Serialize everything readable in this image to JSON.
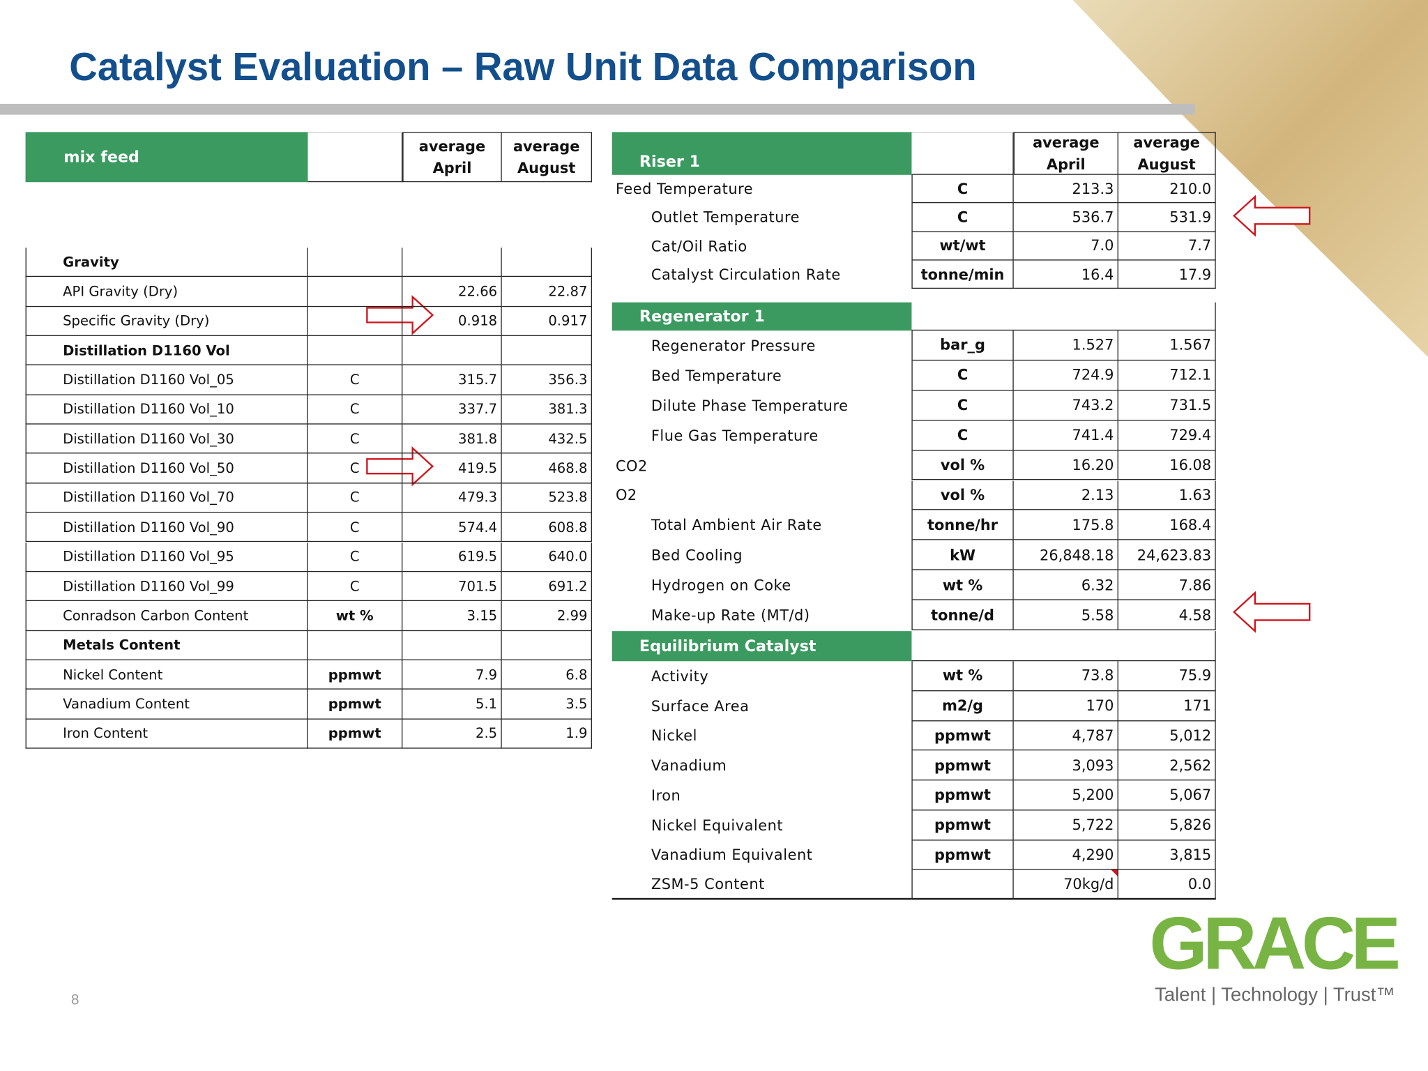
{
  "title": "Catalyst Evaluation – Raw Unit Data Comparison",
  "left_table": {
    "header": {
      "label": "mix feed",
      "columns": [
        [
          "average",
          "April"
        ],
        [
          "average",
          "August"
        ]
      ]
    },
    "rows": [
      {
        "section": "Gravity"
      },
      {
        "label": "API Gravity (Dry)",
        "april": "22.66",
        "august": "22.87"
      },
      {
        "label": "Specific Gravity (Dry)",
        "april": "0.918",
        "august": "0.917"
      },
      {
        "section": "Distillation D1160 Vol"
      },
      {
        "label": "Distillation D1160 Vol_05",
        "unit": "C",
        "april": "315.7",
        "august": "356.3"
      },
      {
        "label": "Distillation D1160 Vol_10",
        "unit": "C",
        "april": "337.7",
        "august": "381.3"
      },
      {
        "label": "Distillation D1160 Vol_30",
        "unit": "C",
        "april": "381.8",
        "august": "432.5"
      },
      {
        "label": "Distillation D1160 Vol_50",
        "unit": "C",
        "april": "419.5",
        "august": "468.8"
      },
      {
        "label": "Distillation D1160 Vol_70",
        "unit": "C",
        "april": "479.3",
        "august": "523.8"
      },
      {
        "label": "Distillation D1160 Vol_90",
        "unit": "C",
        "april": "574.4",
        "august": "608.8"
      },
      {
        "label": "Distillation D1160 Vol_95",
        "unit": "C",
        "april": "619.5",
        "august": "640.0"
      },
      {
        "label": "Distillation D1160 Vol_99",
        "unit": "C",
        "april": "701.5",
        "august": "691.2"
      },
      {
        "label": "Conradson Carbon Content",
        "unit": "wt %",
        "april": "3.15",
        "august": "2.99"
      },
      {
        "section": "Metals Content"
      },
      {
        "label": "Nickel Content",
        "unit": "ppmwt",
        "april": "7.9",
        "august": "6.8"
      },
      {
        "label": "Vanadium Content",
        "unit": "ppmwt",
        "april": "5.1",
        "august": "3.5"
      },
      {
        "label": "Iron Content",
        "unit": "ppmwt",
        "april": "2.5",
        "august": "1.9"
      }
    ]
  },
  "right_table": {
    "columns": [
      [
        "average",
        "April"
      ],
      [
        "average",
        "August"
      ]
    ],
    "sections": [
      {
        "title": "Riser 1",
        "rows": [
          {
            "label": "Feed Temperature",
            "unit": "C",
            "april": "213.3",
            "august": "210.0"
          },
          {
            "label": "Outlet Temperature",
            "unit": "C",
            "april": "536.7",
            "august": "531.9"
          },
          {
            "label": "Cat/Oil Ratio",
            "unit": "wt/wt",
            "april": "7.0",
            "august": "7.7"
          },
          {
            "label": "Catalyst Circulation Rate",
            "unit": "tonne/min",
            "april": "16.4",
            "august": "17.9"
          }
        ]
      },
      {
        "title": "Regenerator 1",
        "rows": [
          {
            "label": "Regenerator Pressure",
            "unit": "bar_g",
            "april": "1.527",
            "august": "1.567"
          },
          {
            "label": "Bed Temperature",
            "unit": "C",
            "april": "724.9",
            "august": "712.1"
          },
          {
            "label": "Dilute Phase Temperature",
            "unit": "C",
            "april": "743.2",
            "august": "731.5"
          },
          {
            "label": "Flue Gas Temperature",
            "unit": "C",
            "april": "741.4",
            "august": "729.4"
          },
          {
            "label": "CO2",
            "unit": "vol %",
            "april": "16.20",
            "august": "16.08"
          },
          {
            "label": "O2",
            "unit": "vol %",
            "april": "2.13",
            "august": "1.63"
          },
          {
            "label": "Total Ambient Air Rate",
            "unit": "tonne/hr",
            "april": "175.8",
            "august": "168.4"
          },
          {
            "label": "Bed Cooling",
            "unit": "kW",
            "april": "26,848.18",
            "august": "24,623.83"
          },
          {
            "label": "Hydrogen on Coke",
            "unit": "wt %",
            "april": "6.32",
            "august": "7.86"
          },
          {
            "label": "Make-up Rate (MT/d)",
            "unit": "tonne/d",
            "april": "5.58",
            "august": "4.58"
          }
        ]
      },
      {
        "title": "Equilibrium Catalyst",
        "rows": [
          {
            "label": "Activity",
            "unit": "wt %",
            "april": "73.8",
            "august": "75.9"
          },
          {
            "label": "Surface Area",
            "unit": "m2/g",
            "april": "170",
            "august": "171"
          },
          {
            "label": "Nickel",
            "unit": "ppmwt",
            "april": "4,787",
            "august": "5,012"
          },
          {
            "label": "Vanadium",
            "unit": "ppmwt",
            "april": "3,093",
            "august": "2,562"
          },
          {
            "label": "Iron",
            "unit": "ppmwt",
            "april": "5,200",
            "august": "5,067"
          },
          {
            "label": "Nickel Equivalent",
            "unit": "ppmwt",
            "april": "5,722",
            "august": "5,826"
          },
          {
            "label": "Vanadium Equivalent",
            "unit": "ppmwt",
            "april": "4,290",
            "august": "3,815"
          },
          {
            "label": "ZSM-5 Content",
            "april": "70kg/d",
            "august": "0.0"
          }
        ]
      }
    ]
  },
  "footer": {
    "page": "8",
    "logo": "GRACE",
    "tagline": "Talent | Technology | Trust™"
  }
}
